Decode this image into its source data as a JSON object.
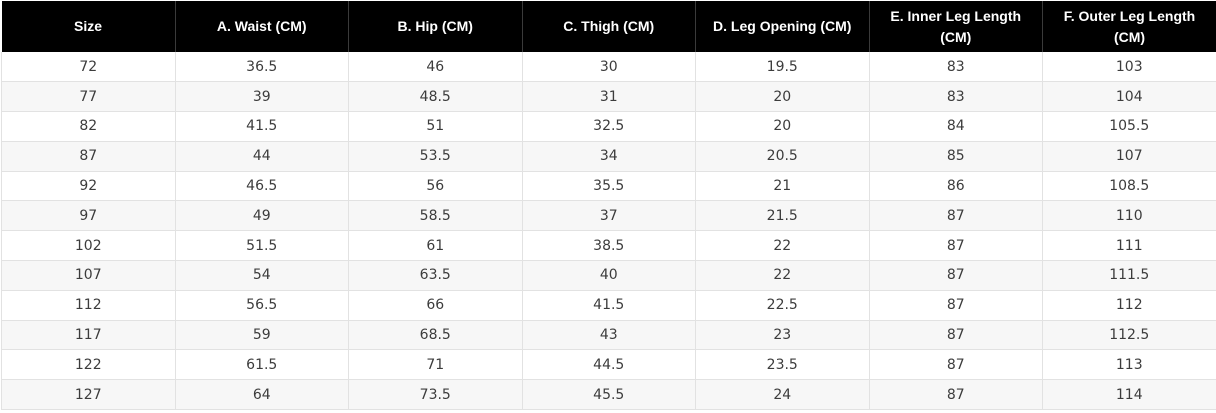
{
  "table": {
    "columns": [
      "Size",
      "A. Waist (CM)",
      "B. Hip (CM)",
      "C. Thigh (CM)",
      "D. Leg Opening (CM)",
      "E. Inner Leg Length (CM)",
      "F. Outer Leg Length (CM)"
    ],
    "rows": [
      [
        "72",
        "36.5",
        "46",
        "30",
        "19.5",
        "83",
        "103"
      ],
      [
        "77",
        "39",
        "48.5",
        "31",
        "20",
        "83",
        "104"
      ],
      [
        "82",
        "41.5",
        "51",
        "32.5",
        "20",
        "84",
        "105.5"
      ],
      [
        "87",
        "44",
        "53.5",
        "34",
        "20.5",
        "85",
        "107"
      ],
      [
        "92",
        "46.5",
        "56",
        "35.5",
        "21",
        "86",
        "108.5"
      ],
      [
        "97",
        "49",
        "58.5",
        "37",
        "21.5",
        "87",
        "110"
      ],
      [
        "102",
        "51.5",
        "61",
        "38.5",
        "22",
        "87",
        "111"
      ],
      [
        "107",
        "54",
        "63.5",
        "40",
        "22",
        "87",
        "111.5"
      ],
      [
        "112",
        "56.5",
        "66",
        "41.5",
        "22.5",
        "87",
        "112"
      ],
      [
        "117",
        "59",
        "68.5",
        "43",
        "23",
        "87",
        "112.5"
      ],
      [
        "122",
        "61.5",
        "71",
        "44.5",
        "23.5",
        "87",
        "113"
      ],
      [
        "127",
        "64",
        "73.5",
        "45.5",
        "24",
        "87",
        "114"
      ]
    ]
  },
  "colors": {
    "header_background": "#000000",
    "header_text": "#ffffff",
    "body_text": "#3c3c3c",
    "row_stripe": "#f7f7f7",
    "grid_line": "#e2e2e2"
  }
}
